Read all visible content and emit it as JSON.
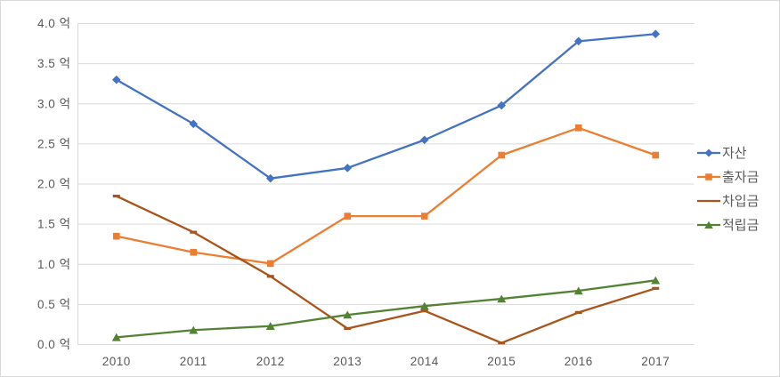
{
  "chart_data": {
    "type": "line",
    "title": "",
    "categories": [
      "2010",
      "2011",
      "2012",
      "2013",
      "2014",
      "2015",
      "2016",
      "2017"
    ],
    "series": [
      {
        "name": "자산",
        "marker": "diamond",
        "color": "#4472C4",
        "values": [
          3.3,
          2.75,
          2.07,
          2.2,
          2.55,
          2.98,
          3.78,
          3.87
        ]
      },
      {
        "name": "출자금",
        "marker": "square",
        "color": "#ED7D31",
        "values": [
          1.35,
          1.15,
          1.01,
          1.6,
          1.6,
          2.36,
          2.7,
          2.36
        ]
      },
      {
        "name": "차입금",
        "marker": "dash",
        "color": "#A9541C",
        "values": [
          1.85,
          1.4,
          0.85,
          0.2,
          0.42,
          0.02,
          0.4,
          0.7
        ]
      },
      {
        "name": "적립금",
        "marker": "triangle",
        "color": "#548235",
        "values": [
          0.09,
          0.18,
          0.23,
          0.37,
          0.48,
          0.57,
          0.67,
          0.8
        ]
      }
    ],
    "y_axis": {
      "min": 0,
      "max": 4,
      "step": 0.5,
      "unit_suffix": " 억",
      "decimals": 1
    },
    "x_axis": {
      "label": ""
    },
    "legend_position": "right",
    "grid": true
  },
  "styles": {
    "background": "#FFFFFF",
    "border_color": "#D9D9D9",
    "grid_color": "#D9D9D9",
    "axis_color": "#D9D9D9",
    "tick_text_color": "#595959",
    "legend_text_color": "#595959"
  }
}
